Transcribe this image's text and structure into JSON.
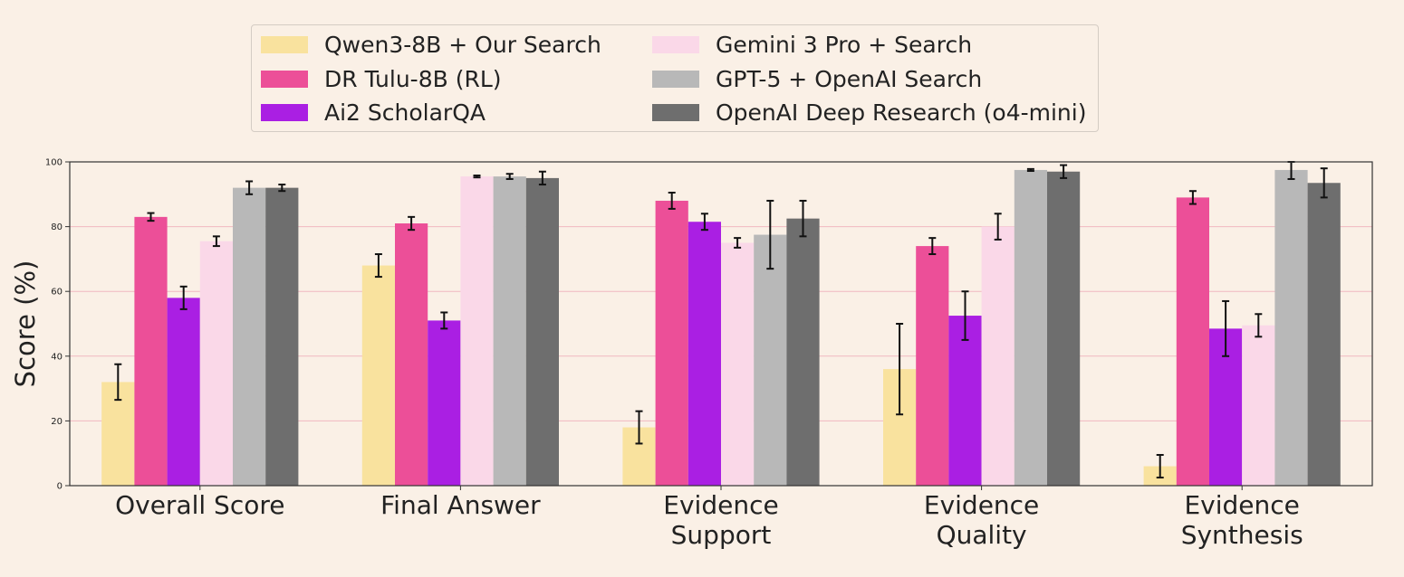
{
  "chart_data": {
    "type": "bar",
    "title": "",
    "xlabel": "",
    "ylabel": "Score (%)",
    "ylim": [
      0,
      100
    ],
    "yticks": [
      0,
      20,
      40,
      60,
      80,
      100
    ],
    "grid": true,
    "legend_position": "top-center",
    "categories": [
      [
        "Overall Score"
      ],
      [
        "Final Answer"
      ],
      [
        "Evidence",
        "Support"
      ],
      [
        "Evidence",
        "Quality"
      ],
      [
        "Evidence",
        "Synthesis"
      ]
    ],
    "series": [
      {
        "name": "Qwen3-8B + Our Search",
        "color": "#f9e29e",
        "values": [
          32,
          68,
          18,
          36,
          6
        ],
        "errors": [
          5.5,
          3.5,
          5,
          14,
          3.5
        ]
      },
      {
        "name": "DR Tulu-8B (RL)",
        "color": "#ec4f98",
        "values": [
          83,
          81,
          88,
          74,
          89
        ],
        "errors": [
          1.2,
          2,
          2.5,
          2.5,
          2
        ]
      },
      {
        "name": "Ai2 ScholarQA",
        "color": "#aa1fe3",
        "values": [
          58,
          51,
          81.5,
          52.5,
          48.5
        ],
        "errors": [
          3.5,
          2.5,
          2.5,
          7.5,
          8.5
        ]
      },
      {
        "name": "Gemini 3 Pro + Search",
        "color": "#fad8e8",
        "values": [
          75.5,
          95.5,
          75,
          80,
          49.5
        ],
        "errors": [
          1.5,
          0.3,
          1.5,
          4,
          3.5
        ]
      },
      {
        "name": "GPT-5 + OpenAI Search",
        "color": "#b8b8b8",
        "values": [
          92,
          95.5,
          77.5,
          97.5,
          97.5
        ],
        "errors": [
          2,
          0.8,
          10.5,
          0.3,
          2.8
        ]
      },
      {
        "name": "OpenAI Deep Research (o4-mini)",
        "color": "#6e6e6e",
        "values": [
          92,
          95,
          82.5,
          97,
          93.5
        ],
        "errors": [
          1,
          2,
          5.5,
          2,
          4.5
        ]
      }
    ]
  },
  "colors": {
    "background": "#faf0e6",
    "grid": "#f0b8c0",
    "axis": "#333333"
  }
}
